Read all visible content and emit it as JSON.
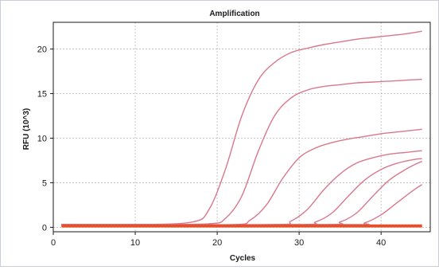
{
  "chart_data": {
    "type": "line",
    "title": "Amplification",
    "xlabel": "Cycles",
    "ylabel": "RFU (10^3)",
    "xlim": [
      0,
      46
    ],
    "ylim": [
      -0.5,
      23
    ],
    "xticks": [
      0,
      10,
      20,
      30,
      40
    ],
    "yticks": [
      0,
      5,
      10,
      15,
      20
    ],
    "xtick_labels": [
      "0",
      "10",
      "20",
      "30",
      "40"
    ],
    "ytick_labels": [
      "0",
      "5",
      "10",
      "15",
      "20"
    ],
    "grid": true,
    "colors": {
      "amplified": "#d9788c",
      "baseline": "#e5502a",
      "grid": "#b8b8b8",
      "plot_border": "#1a1a1a"
    },
    "series": [
      {
        "x": [
          1,
          10,
          17,
          19,
          21,
          23,
          25,
          27,
          29,
          31,
          33,
          35,
          37,
          39,
          41,
          43,
          45
        ],
        "y": [
          0.3,
          0.3,
          0.6,
          2.0,
          6.5,
          12.5,
          16.5,
          18.5,
          19.6,
          20.1,
          20.5,
          20.8,
          21.1,
          21.3,
          21.5,
          21.7,
          22.0
        ]
      },
      {
        "x": [
          1,
          10,
          19,
          21,
          23,
          25,
          27,
          29,
          31,
          33,
          35,
          37,
          39,
          41,
          43,
          45
        ],
        "y": [
          0.3,
          0.3,
          0.4,
          1.0,
          3.5,
          8.5,
          12.5,
          14.5,
          15.4,
          15.8,
          16.0,
          16.2,
          16.3,
          16.4,
          16.5,
          16.6
        ]
      },
      {
        "x": [
          1,
          10,
          22,
          24,
          26,
          28,
          30,
          32,
          34,
          36,
          38,
          40,
          42,
          45
        ],
        "y": [
          0.3,
          0.3,
          0.3,
          0.8,
          2.5,
          5.5,
          7.8,
          8.9,
          9.5,
          9.9,
          10.2,
          10.5,
          10.7,
          11.0
        ]
      },
      {
        "x": [
          1,
          10,
          27,
          29,
          31,
          33,
          35,
          37,
          39,
          41,
          43,
          45
        ],
        "y": [
          0.3,
          0.3,
          0.3,
          0.7,
          2.0,
          4.2,
          6.0,
          7.2,
          7.8,
          8.2,
          8.4,
          8.6
        ]
      },
      {
        "x": [
          1,
          10,
          30,
          32,
          34,
          36,
          38,
          40,
          42,
          44,
          45
        ],
        "y": [
          0.3,
          0.3,
          0.3,
          0.6,
          1.6,
          3.5,
          5.3,
          6.5,
          7.2,
          7.6,
          7.7
        ]
      },
      {
        "x": [
          1,
          10,
          33,
          35,
          37,
          39,
          41,
          43,
          44,
          45
        ],
        "y": [
          0.3,
          0.3,
          0.3,
          0.6,
          1.6,
          3.5,
          5.3,
          6.5,
          7.0,
          7.4
        ]
      },
      {
        "x": [
          1,
          10,
          36,
          38,
          40,
          42,
          44,
          45
        ],
        "y": [
          0.3,
          0.3,
          0.3,
          0.5,
          1.4,
          2.8,
          4.2,
          4.8
        ]
      },
      {
        "x": [
          1,
          45
        ],
        "y": [
          0.25,
          0.25
        ],
        "baseline": true
      },
      {
        "x": [
          1,
          45
        ],
        "y": [
          0.15,
          0.15
        ],
        "baseline": true
      },
      {
        "x": [
          1,
          45
        ],
        "y": [
          0.05,
          0.05
        ],
        "baseline": true
      }
    ]
  }
}
